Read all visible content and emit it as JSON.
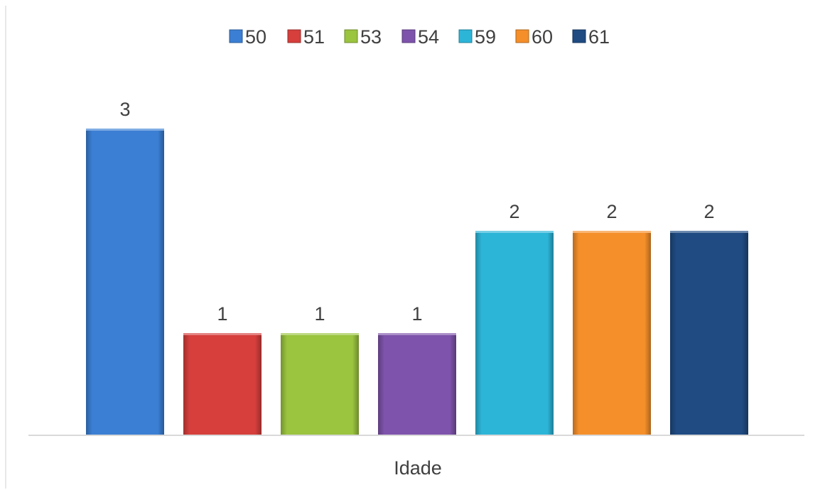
{
  "chart_data": {
    "type": "bar",
    "xlabel": "Idade",
    "ylabel": "",
    "ylim": [
      0,
      3
    ],
    "grid": false,
    "legend_position": "top",
    "series": [
      {
        "name": "50",
        "value": 3,
        "color": "#3b7fd4"
      },
      {
        "name": "51",
        "value": 1,
        "color": "#d63f3c"
      },
      {
        "name": "53",
        "value": 1,
        "color": "#9bc43f"
      },
      {
        "name": "54",
        "value": 1,
        "color": "#7d53ab"
      },
      {
        "name": "59",
        "value": 2,
        "color": "#2db5d8"
      },
      {
        "name": "60",
        "value": 2,
        "color": "#f58f2a"
      },
      {
        "name": "61",
        "value": 2,
        "color": "#1f4b82"
      }
    ]
  }
}
